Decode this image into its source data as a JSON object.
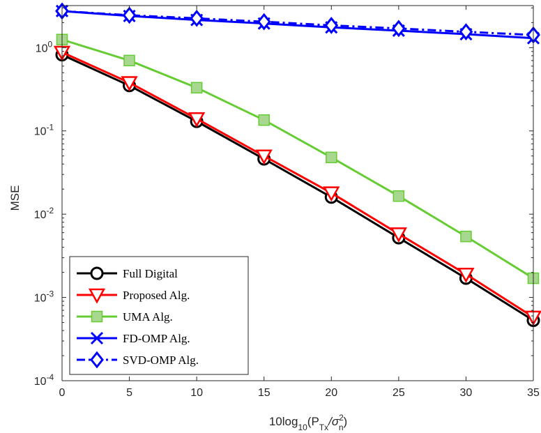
{
  "chart_data": {
    "type": "line",
    "title": "",
    "xlabel": {
      "base": "10log",
      "sub1": "10",
      "mid": "(P",
      "sub2": "Tx",
      "slash": "/σ",
      "sup": "2",
      "sub3": "n",
      "close": ")"
    },
    "ylabel": "MSE",
    "x": [
      0,
      5,
      10,
      15,
      20,
      25,
      30,
      35
    ],
    "xlim": [
      0,
      35
    ],
    "ylim": [
      0.0001,
      3.2
    ],
    "yscale": "log",
    "xticks": [
      "0",
      "5",
      "10",
      "15",
      "20",
      "25",
      "30",
      "35"
    ],
    "yticks": [
      {
        "value": 0.0001,
        "base": "10",
        "exp": "-4"
      },
      {
        "value": 0.001,
        "base": "10",
        "exp": "-3"
      },
      {
        "value": 0.01,
        "base": "10",
        "exp": "-2"
      },
      {
        "value": 0.1,
        "base": "10",
        "exp": "-1"
      },
      {
        "value": 1,
        "base": "10",
        "exp": "0"
      }
    ],
    "grid": false,
    "legend_position": "bottom-left",
    "series": [
      {
        "name": "Full Digital",
        "color": "#000000",
        "marker": "circle",
        "dash": "solid",
        "values": [
          0.82,
          0.35,
          0.13,
          0.046,
          0.016,
          0.0052,
          0.0017,
          0.00053
        ]
      },
      {
        "name": "Proposed Alg.",
        "color": "#ff0000",
        "marker": "triangle-down",
        "dash": "solid",
        "values": [
          0.88,
          0.38,
          0.14,
          0.05,
          0.018,
          0.0058,
          0.0019,
          0.00058
        ]
      },
      {
        "name": "UMA Alg.",
        "color": "#66cc33",
        "marker": "square",
        "dash": "solid",
        "values": [
          1.25,
          0.7,
          0.33,
          0.135,
          0.048,
          0.0165,
          0.0054,
          0.0017
        ]
      },
      {
        "name": "FD-OMP Alg.",
        "color": "#0000ff",
        "marker": "x",
        "dash": "solid",
        "values": [
          2.75,
          2.4,
          2.15,
          1.95,
          1.75,
          1.6,
          1.45,
          1.3
        ]
      },
      {
        "name": "SVD-OMP Alg.",
        "color": "#0000ff",
        "marker": "diamond",
        "dash": "dashdot",
        "values": [
          2.75,
          2.45,
          2.25,
          2.05,
          1.85,
          1.7,
          1.55,
          1.42
        ]
      }
    ]
  }
}
